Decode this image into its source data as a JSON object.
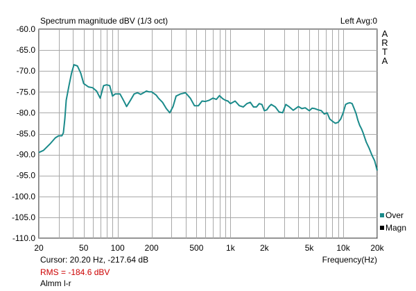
{
  "header": {
    "title": "Spectrum magnitude dBV (1/3 oct)",
    "channel": "Left  Avg:0",
    "brand_letters": [
      "A",
      "R",
      "T",
      "A"
    ]
  },
  "legend": [
    {
      "label": "Over",
      "color": "#1a8a8a"
    },
    {
      "label": "Magn",
      "color": "#000000"
    }
  ],
  "footer": {
    "cursor": "Cursor:   20.20 Hz, -217.64 dB",
    "rms": "RMS = -184.6 dBV",
    "note": "Almm l-r",
    "x_unit": "Frequency(Hz)"
  },
  "chart_data": {
    "type": "line",
    "title": "Spectrum magnitude dBV (1/3 oct)",
    "xlabel": "Frequency(Hz)",
    "ylabel": "",
    "x_scale": "log",
    "xlim": [
      20,
      20000
    ],
    "ylim": [
      -110,
      -60
    ],
    "x_ticks": [
      20,
      50,
      100,
      200,
      500,
      1000,
      2000,
      5000,
      10000,
      20000
    ],
    "x_tick_labels": [
      "20",
      "50",
      "100",
      "200",
      "500",
      "1k",
      "2k",
      "5k",
      "10k",
      "20k"
    ],
    "y_ticks": [
      -60,
      -65,
      -70,
      -75,
      -80,
      -85,
      -90,
      -95,
      -100,
      -105,
      -110
    ],
    "y_tick_labels": [
      "-60.0",
      "-65.0",
      "-70.0",
      "-75.0",
      "-80.0",
      "-85.0",
      "-90.0",
      "-95.0",
      "-100.0",
      "-105.0",
      "-110.0"
    ],
    "grid": true,
    "series": [
      {
        "name": "Over",
        "color": "#1a8a8a",
        "x": [
          20,
          22,
          25,
          28,
          30,
          32,
          33,
          34,
          35,
          37,
          39,
          41,
          44,
          47,
          50,
          55,
          60,
          65,
          70,
          75,
          80,
          85,
          90,
          95,
          100,
          105,
          110,
          115,
          120,
          130,
          140,
          150,
          160,
          170,
          180,
          190,
          200,
          210,
          220,
          230,
          250,
          270,
          290,
          310,
          330,
          360,
          400,
          440,
          480,
          520,
          560,
          600,
          650,
          700,
          750,
          800,
          850,
          900,
          950,
          1000,
          1100,
          1200,
          1300,
          1400,
          1500,
          1600,
          1700,
          1800,
          1900,
          2000,
          2100,
          2200,
          2300,
          2500,
          2700,
          2900,
          3100,
          3300,
          3600,
          4000,
          4300,
          4600,
          5000,
          5300,
          5600,
          6000,
          6400,
          6800,
          7200,
          7600,
          8000,
          8500,
          9000,
          9500,
          10000,
          10500,
          11000,
          11500,
          12000,
          12500,
          13000,
          13500,
          14000,
          14500,
          15000,
          16000,
          17000,
          18000,
          19000,
          20000
        ],
        "y": [
          -89.5,
          -89,
          -87.5,
          -86,
          -85.5,
          -85.5,
          -84.8,
          -81.5,
          -77,
          -73.5,
          -70.5,
          -68.5,
          -68.8,
          -70.5,
          -73,
          -73.8,
          -74,
          -74.8,
          -76.5,
          -73.5,
          -73.3,
          -73.5,
          -76,
          -75.5,
          -75.5,
          -75.5,
          -76.5,
          -77.5,
          -78.5,
          -77,
          -75.5,
          -75.2,
          -75.6,
          -75.2,
          -74.8,
          -75,
          -75,
          -75.4,
          -75.8,
          -76.5,
          -77.5,
          -79,
          -80,
          -78.5,
          -76,
          -75.5,
          -75.2,
          -76.5,
          -78.3,
          -78.3,
          -77.2,
          -77.3,
          -77,
          -76.5,
          -76.8,
          -75.9,
          -76.6,
          -77,
          -77.2,
          -77.8,
          -77.2,
          -78.3,
          -78.6,
          -77.8,
          -77.5,
          -78.6,
          -78.6,
          -77.8,
          -78,
          -79.5,
          -79.3,
          -78.5,
          -78,
          -78.6,
          -79.8,
          -80,
          -78,
          -78.5,
          -79.4,
          -78.5,
          -79,
          -78.8,
          -79.5,
          -78.9,
          -79,
          -79.3,
          -79.5,
          -80.3,
          -80,
          -81.5,
          -82,
          -82.5,
          -82.3,
          -81.5,
          -80,
          -78,
          -77.7,
          -77.6,
          -77.8,
          -79,
          -80.2,
          -81.8,
          -83,
          -83.8,
          -84.8,
          -87,
          -88.5,
          -90.2,
          -91.5,
          -93.8
        ]
      }
    ]
  }
}
